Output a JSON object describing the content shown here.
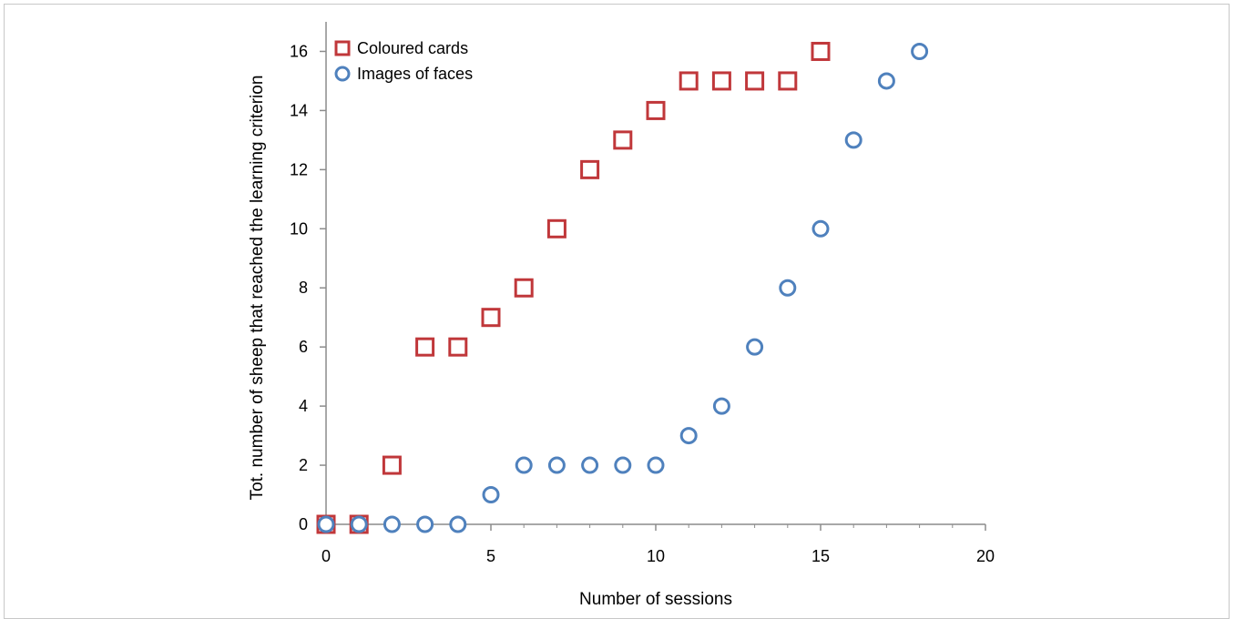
{
  "chart_data": {
    "type": "scatter",
    "title": "",
    "xlabel": "Number of sessions",
    "ylabel": "Tot. number of sheep that reached the learning criterion",
    "xlim": [
      0,
      20
    ],
    "ylim": [
      0,
      17
    ],
    "xticks": [
      0,
      5,
      10,
      15,
      20
    ],
    "yticks": [
      0,
      2,
      4,
      6,
      8,
      10,
      12,
      14,
      16
    ],
    "grid": false,
    "legend_position": "top-left",
    "series": [
      {
        "name": "Coloured cards",
        "marker": "square",
        "color": "#c0373a",
        "x": [
          0,
          1,
          2,
          3,
          4,
          5,
          6,
          7,
          8,
          9,
          10,
          11,
          12,
          13,
          14,
          15
        ],
        "y": [
          0,
          0,
          2,
          6,
          6,
          7,
          8,
          10,
          12,
          13,
          14,
          15,
          15,
          15,
          15,
          16
        ]
      },
      {
        "name": "Images of faces",
        "marker": "circle",
        "color": "#4f81bd",
        "x": [
          0,
          1,
          2,
          3,
          4,
          5,
          6,
          7,
          8,
          9,
          10,
          11,
          12,
          13,
          14,
          15,
          16,
          17,
          18
        ],
        "y": [
          0,
          0,
          0,
          0,
          0,
          1,
          2,
          2,
          2,
          2,
          2,
          3,
          4,
          6,
          8,
          10,
          13,
          15,
          16
        ]
      }
    ]
  }
}
